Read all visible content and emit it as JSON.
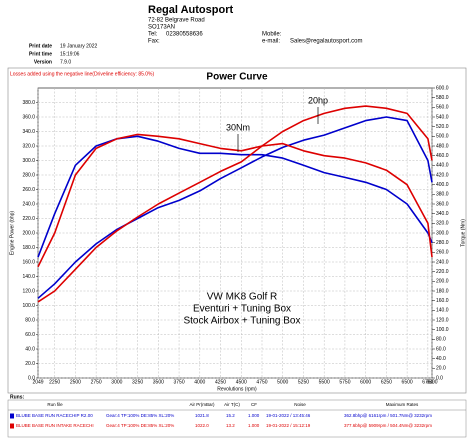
{
  "header": {
    "company": "Regal Autosport",
    "address": "72-82 Belgrave Road",
    "postcode": "SO173AN",
    "tel_label": "Tel:",
    "tel": "02380558636",
    "fax_label": "Fax:",
    "mobile_label": "Mobile:",
    "email_label": "e-mail:",
    "email": "Sales@regalautosport.com"
  },
  "print_info": [
    [
      "Print date",
      "19 January 2022"
    ],
    [
      "Print time",
      "15:19:06"
    ],
    [
      "Version",
      "7.9.0"
    ]
  ],
  "chart_data": {
    "type": "line",
    "note": "Losses added using the negative line(Driveline efficiency: 85.0%)",
    "title": "Power Curve",
    "y_label": "Engine Power (bhp)",
    "y2_label": "Torque (Nm)",
    "x_label": "Revolutions (rpm)",
    "annotations": [
      "30Nm",
      "20hp",
      "VW MK8 Golf R",
      "Eventuri + Tuning Box",
      "Stock Airbox + Tuning Box"
    ],
    "x": [
      2049,
      2250,
      2500,
      2750,
      3000,
      3250,
      3500,
      3750,
      4000,
      4250,
      4500,
      4750,
      5000,
      5250,
      5500,
      5750,
      6000,
      6250,
      6500,
      6750,
      6800
    ],
    "series": [
      {
        "color": "#0000cc",
        "axis": "y",
        "values": [
          110,
          130,
          160,
          185,
          205,
          220,
          235,
          245,
          258,
          275,
          290,
          305,
          318,
          328,
          335,
          345,
          355,
          360,
          355,
          300,
          270
        ]
      },
      {
        "color": "#0000cc",
        "axis": "y2",
        "values": [
          250,
          340,
          440,
          480,
          495,
          500,
          490,
          475,
          465,
          465,
          462,
          462,
          455,
          440,
          425,
          415,
          405,
          390,
          360,
          300,
          280
        ]
      },
      {
        "color": "#dd0000",
        "axis": "y",
        "values": [
          105,
          120,
          150,
          180,
          203,
          222,
          240,
          255,
          270,
          285,
          298,
          320,
          340,
          355,
          365,
          372,
          375,
          372,
          365,
          330,
          300
        ]
      },
      {
        "color": "#dd0000",
        "axis": "y2",
        "values": [
          230,
          300,
          420,
          475,
          495,
          504,
          500,
          495,
          485,
          475,
          470,
          480,
          485,
          470,
          460,
          455,
          445,
          430,
          400,
          320,
          250
        ]
      }
    ],
    "xlim": [
      2049,
      6800
    ],
    "xticks": [
      2049,
      2250,
      2500,
      2750,
      3000,
      3250,
      3500,
      3750,
      4000,
      4250,
      4500,
      4750,
      5000,
      5250,
      5500,
      5750,
      6000,
      6250,
      6500,
      6750,
      6800
    ],
    "ylim": [
      0,
      400
    ],
    "yticks": [
      {
        "value": 0,
        "label": "0.0"
      },
      {
        "value": 20,
        "label": "20.0"
      },
      {
        "value": 40,
        "label": "40.0"
      },
      {
        "value": 60,
        "label": "60.0"
      },
      {
        "value": 80,
        "label": "80.0"
      },
      {
        "value": 100,
        "label": "100.0"
      },
      {
        "value": 120,
        "label": "120.0"
      },
      {
        "value": 140,
        "label": "140.0"
      },
      {
        "value": 160,
        "label": "160.0"
      },
      {
        "value": 180,
        "label": "180.0"
      },
      {
        "value": 200,
        "label": "200.0"
      },
      {
        "value": 220,
        "label": "220.0"
      },
      {
        "value": 240,
        "label": "240.0"
      },
      {
        "value": 260,
        "label": "260.0"
      },
      {
        "value": 280,
        "label": "280.0"
      },
      {
        "value": 300,
        "label": "300.0"
      },
      {
        "value": 320,
        "label": "320.0"
      },
      {
        "value": 340,
        "label": "340.0"
      },
      {
        "value": 360,
        "label": "360.0"
      },
      {
        "value": 380,
        "label": "380.0"
      }
    ],
    "y2lim": [
      0,
      600
    ],
    "y2ticks": [
      {
        "value": 0,
        "label": "0.0"
      },
      {
        "value": 20,
        "label": "20.0"
      },
      {
        "value": 40,
        "label": "40.0"
      },
      {
        "value": 60,
        "label": "60.0"
      },
      {
        "value": 80,
        "label": "80.0"
      },
      {
        "value": 100,
        "label": "100.0"
      },
      {
        "value": 120,
        "label": "120.0"
      },
      {
        "value": 140,
        "label": "140.0"
      },
      {
        "value": 160,
        "label": "160.0"
      },
      {
        "value": 180,
        "label": "180.0"
      },
      {
        "value": 200,
        "label": "200.0"
      },
      {
        "value": 220,
        "label": "220.0"
      },
      {
        "value": 240,
        "label": "240.0"
      },
      {
        "value": 260,
        "label": "260.0"
      },
      {
        "value": 280,
        "label": "280.0"
      },
      {
        "value": 300,
        "label": "300.0"
      },
      {
        "value": 320,
        "label": "320.0"
      },
      {
        "value": 340,
        "label": "340.0"
      },
      {
        "value": 360,
        "label": "360.0"
      },
      {
        "value": 380,
        "label": "380.0"
      },
      {
        "value": 400,
        "label": "400.0"
      },
      {
        "value": 420,
        "label": "420.0"
      },
      {
        "value": 440,
        "label": "440.0"
      },
      {
        "value": 460,
        "label": "460.0"
      },
      {
        "value": 480,
        "label": "480.0"
      },
      {
        "value": 500,
        "label": "500.0"
      },
      {
        "value": 520,
        "label": "520.0"
      },
      {
        "value": 540,
        "label": "540.0"
      },
      {
        "value": 560,
        "label": "560.0"
      },
      {
        "value": 580,
        "label": "580.0"
      },
      {
        "value": 600,
        "label": "600.0"
      }
    ],
    "grid": true
  },
  "runs": {
    "title": "Runs:",
    "headers": [
      "Run file",
      "Air Pr(mBar)",
      "Air T(C)",
      "CF",
      "Noise",
      "Maximum Rates"
    ],
    "rows": [
      [
        "BLUBE BASE RUN RACECHIP R2.00",
        "Gear:4 TP:100% DE:85% XL:20%",
        "1021.8",
        "15.2",
        "1.000",
        "19-01-2022 / 13:45:46",
        "362.8bhp@ 6161rpm / 501.7Nm@ 3232rpm"
      ],
      [
        "BLUBE BASE RUN INTAKE RACECHI",
        "Gear:4 TP:100% DE:85% XL:20%",
        "1022.0",
        "13.2",
        "1.000",
        "19-01-2022 / 15:12:19",
        "377.6bhp@ 5909rpm / 504.4Nm@ 3232rpm"
      ]
    ]
  }
}
